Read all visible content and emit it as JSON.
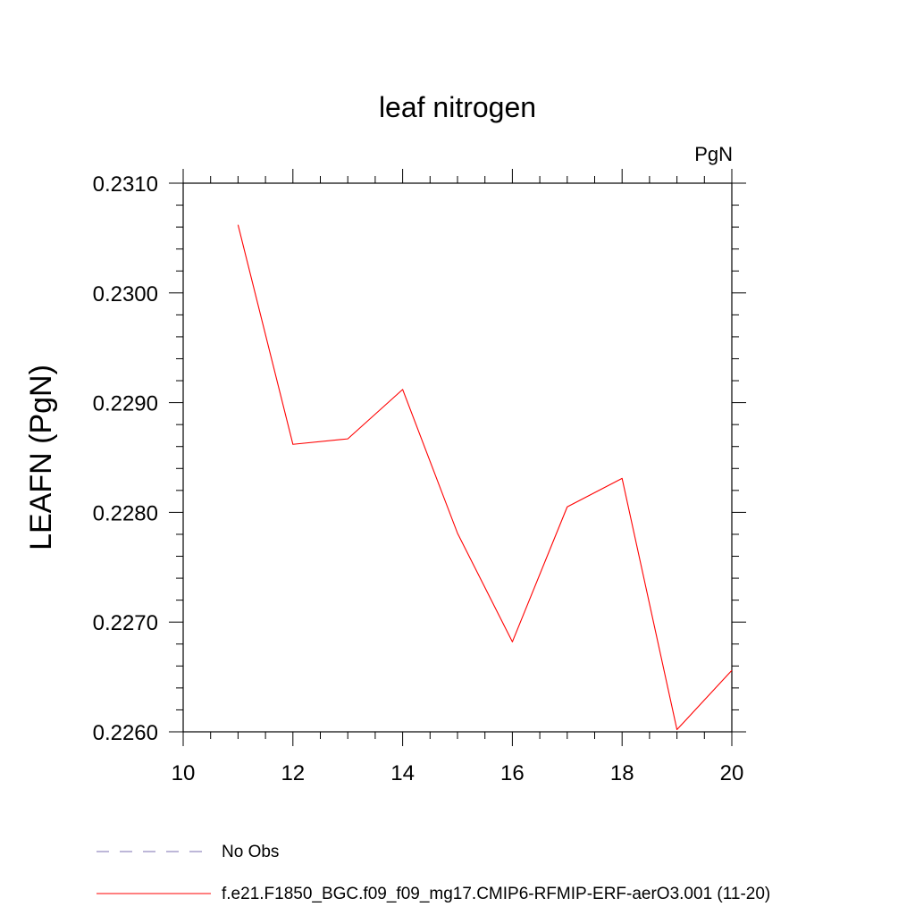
{
  "chart_data": {
    "type": "line",
    "title": "leaf nitrogen",
    "units_label": "PgN",
    "ylabel": "LEAFN  (PgN)",
    "xlabel": "",
    "xlim": [
      10,
      20
    ],
    "ylim": [
      0.226,
      0.231
    ],
    "x_ticks": [
      "10",
      "12",
      "14",
      "16",
      "18",
      "20"
    ],
    "y_ticks": [
      "0.2260",
      "0.2270",
      "0.2280",
      "0.2290",
      "0.2300",
      "0.2310"
    ],
    "grid": false,
    "series": [
      {
        "name": "f.e21.F1850_BGC.f09_f09_mg17.CMIP6-RFMIP-ERF-aerO3.001 (11-20)",
        "color": "#ff0000",
        "x": [
          11,
          12,
          13,
          14,
          15,
          16,
          17,
          18,
          19,
          20
        ],
        "y": [
          0.23062,
          0.22862,
          0.22867,
          0.22912,
          0.22781,
          0.22682,
          0.22805,
          0.22831,
          0.22602,
          0.22656
        ]
      }
    ],
    "legend": {
      "placement": "bottom",
      "entries": [
        {
          "label": "No Obs",
          "style": "dashed",
          "color": "#7b6fb0"
        },
        {
          "label": "f.e21.F1850_BGC.f09_f09_mg17.CMIP6-RFMIP-ERF-aerO3.001 (11-20)",
          "style": "solid",
          "color": "#ff0000"
        }
      ]
    }
  }
}
